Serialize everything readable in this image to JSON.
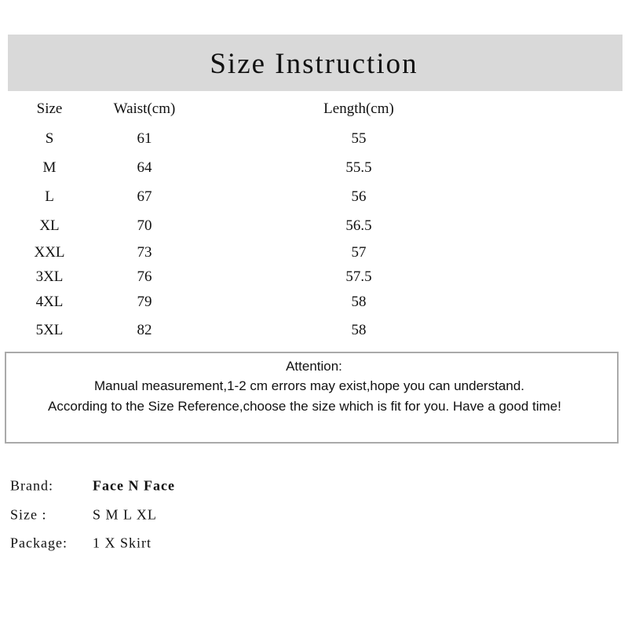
{
  "title": "Size Instruction",
  "table": {
    "headers": [
      "Size",
      "Waist(cm)",
      "Length(cm)"
    ],
    "rows": [
      [
        "S",
        "61",
        "55"
      ],
      [
        "M",
        "64",
        "55.5"
      ],
      [
        "L",
        "67",
        "56"
      ],
      [
        "XL",
        "70",
        "56.5"
      ],
      [
        "XXL",
        "73",
        "57"
      ],
      [
        "3XL",
        "76",
        "57.5"
      ],
      [
        "4XL",
        "79",
        "58"
      ],
      [
        "5XL",
        "82",
        "58"
      ]
    ]
  },
  "attention": {
    "heading": "Attention:",
    "line1": "Manual measurement,1-2  cm errors  may exist,hope  you can understand.",
    "line2": "According to the Size Reference,choose  the size which is fit for you. Have a good time!"
  },
  "info": [
    {
      "label": "Brand:",
      "value": "Face N Face"
    },
    {
      "label": "Size :",
      "value": "S M L XL"
    },
    {
      "label": "Package:",
      "value": "1 X Skirt"
    }
  ]
}
